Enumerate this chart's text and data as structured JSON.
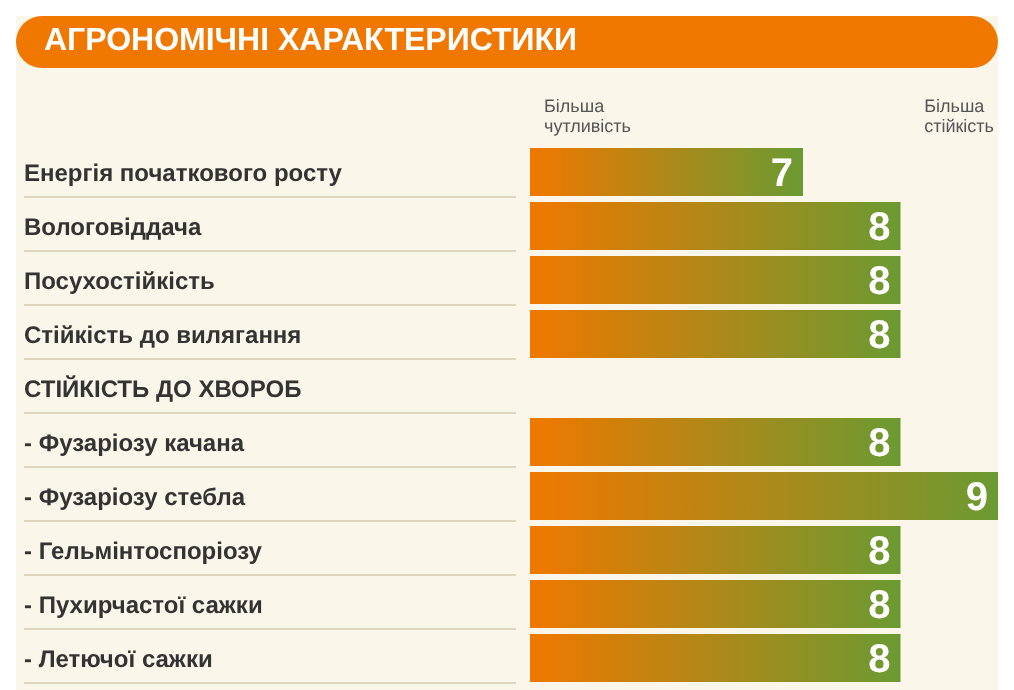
{
  "chart_data": {
    "type": "bar",
    "orientation": "horizontal",
    "title": "АГРОНОМІЧНІ ХАРАКТЕРИСТИКИ",
    "categories": [
      "Енергія початкового росту",
      "Вологовіддача",
      "Посухостійкість",
      "Стійкість до вилягання",
      "СТІЙКІСТЬ ДО ХВОРОБ",
      "- Фузаріозу качана",
      "- Фузаріозу стебла",
      "- Гельмінтоспоріозу",
      "- Пухирчастої сажки",
      "- Летючої сажки"
    ],
    "values": [
      7,
      8,
      8,
      8,
      null,
      8,
      9,
      8,
      8,
      8
    ],
    "color": "#f07800",
    "xlim": [
      4.2,
      9
    ],
    "data_labels": true,
    "tick_labels": "y",
    "annotations": [
      "Більша\nчутливість",
      "Більша\nстійкість"
    ]
  }
}
